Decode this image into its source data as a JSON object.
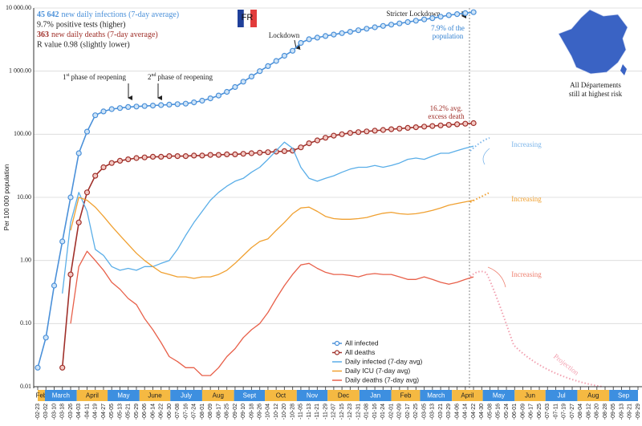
{
  "chart_data": {
    "type": "line",
    "flag": "FR",
    "y_label": "Per 100 000 population",
    "log_y": true,
    "ylim": [
      0.01,
      10000
    ],
    "yticks": [
      {
        "value": 0.01,
        "label": "0.01"
      },
      {
        "value": 0.1,
        "label": "0.10"
      },
      {
        "value": 1,
        "label": "1.00"
      },
      {
        "value": 10,
        "label": "10.00"
      },
      {
        "value": 100,
        "label": "100.00"
      },
      {
        "value": 1000,
        "label": "1 000.00"
      },
      {
        "value": 10000,
        "label": "10 000.00"
      }
    ],
    "xlim": [
      0,
      584
    ],
    "xticks": [
      {
        "value": 0,
        "label": "-02-23"
      },
      {
        "value": 8,
        "label": "-03-02"
      },
      {
        "value": 16,
        "label": "-03-10"
      },
      {
        "value": 24,
        "label": "-03-18"
      },
      {
        "value": 32,
        "label": "-03-26"
      },
      {
        "value": 40,
        "label": "-04-03"
      },
      {
        "value": 48,
        "label": "-04-11"
      },
      {
        "value": 56,
        "label": "-04-19"
      },
      {
        "value": 64,
        "label": "-04-27"
      },
      {
        "value": 72,
        "label": "-05-05"
      },
      {
        "value": 80,
        "label": "-05-13"
      },
      {
        "value": 88,
        "label": "-05-21"
      },
      {
        "value": 96,
        "label": "-05-29"
      },
      {
        "value": 104,
        "label": "-06-06"
      },
      {
        "value": 112,
        "label": "-06-14"
      },
      {
        "value": 120,
        "label": "-06-22"
      },
      {
        "value": 128,
        "label": "-06-30"
      },
      {
        "value": 136,
        "label": "-07-08"
      },
      {
        "value": 144,
        "label": "-07-16"
      },
      {
        "value": 152,
        "label": "-07-24"
      },
      {
        "value": 160,
        "label": "-08-01"
      },
      {
        "value": 168,
        "label": "-08-09"
      },
      {
        "value": 176,
        "label": "-08-17"
      },
      {
        "value": 184,
        "label": "-08-25"
      },
      {
        "value": 192,
        "label": "-09-02"
      },
      {
        "value": 200,
        "label": "-09-10"
      },
      {
        "value": 208,
        "label": "-09-18"
      },
      {
        "value": 216,
        "label": "-09-26"
      },
      {
        "value": 224,
        "label": "-10-04"
      },
      {
        "value": 232,
        "label": "-10-12"
      },
      {
        "value": 240,
        "label": "-10-20"
      },
      {
        "value": 248,
        "label": "-10-28"
      },
      {
        "value": 256,
        "label": "-11-05"
      },
      {
        "value": 264,
        "label": "-11-13"
      },
      {
        "value": 272,
        "label": "-11-21"
      },
      {
        "value": 280,
        "label": "-11-29"
      },
      {
        "value": 288,
        "label": "-12-07"
      },
      {
        "value": 296,
        "label": "-12-15"
      },
      {
        "value": 304,
        "label": "-12-23"
      },
      {
        "value": 312,
        "label": "-12-31"
      },
      {
        "value": 320,
        "label": "-01-08"
      },
      {
        "value": 328,
        "label": "-01-16"
      },
      {
        "value": 336,
        "label": "-01-24"
      },
      {
        "value": 344,
        "label": "-02-01"
      },
      {
        "value": 352,
        "label": "-02-09"
      },
      {
        "value": 360,
        "label": "-02-17"
      },
      {
        "value": 368,
        "label": "-02-25"
      },
      {
        "value": 376,
        "label": "-03-05"
      },
      {
        "value": 384,
        "label": "-03-13"
      },
      {
        "value": 392,
        "label": "-03-21"
      },
      {
        "value": 400,
        "label": "-03-29"
      },
      {
        "value": 408,
        "label": "-04-06"
      },
      {
        "value": 416,
        "label": "-04-14"
      },
      {
        "value": 424,
        "label": "-04-22"
      },
      {
        "value": 432,
        "label": "-04-30"
      },
      {
        "value": 440,
        "label": "-05-08"
      },
      {
        "value": 448,
        "label": "-05-16"
      },
      {
        "value": 456,
        "label": "-05-24"
      },
      {
        "value": 464,
        "label": "-06-01"
      },
      {
        "value": 472,
        "label": "-06-09"
      },
      {
        "value": 480,
        "label": "-06-17"
      },
      {
        "value": 488,
        "label": "-06-25"
      },
      {
        "value": 496,
        "label": "-07-03"
      },
      {
        "value": 504,
        "label": "-07-11"
      },
      {
        "value": 512,
        "label": "-07-19"
      },
      {
        "value": 520,
        "label": "-07-27"
      },
      {
        "value": 528,
        "label": "-08-04"
      },
      {
        "value": 536,
        "label": "-08-12"
      },
      {
        "value": 544,
        "label": "-08-20"
      },
      {
        "value": 552,
        "label": "-08-28"
      },
      {
        "value": 560,
        "label": "-09-05"
      },
      {
        "value": 568,
        "label": "-09-13"
      },
      {
        "value": 576,
        "label": "-09-21"
      },
      {
        "value": 584,
        "label": "-09-29"
      }
    ],
    "month_bands": [
      {
        "label": "Feb",
        "start": 0,
        "end": 7,
        "color": "#f5b942"
      },
      {
        "label": "March",
        "start": 7,
        "end": 38,
        "color": "#3d8fe0"
      },
      {
        "label": "April",
        "start": 38,
        "end": 68,
        "color": "#f5b942"
      },
      {
        "label": "May",
        "start": 68,
        "end": 99,
        "color": "#3d8fe0"
      },
      {
        "label": "June",
        "start": 99,
        "end": 129,
        "color": "#f5b942"
      },
      {
        "label": "July",
        "start": 129,
        "end": 160,
        "color": "#3d8fe0"
      },
      {
        "label": "Aug",
        "start": 160,
        "end": 191,
        "color": "#f5b942"
      },
      {
        "label": "Sept",
        "start": 191,
        "end": 221,
        "color": "#3d8fe0"
      },
      {
        "label": "Oct",
        "start": 221,
        "end": 252,
        "color": "#f5b942"
      },
      {
        "label": "Nov",
        "start": 252,
        "end": 282,
        "color": "#3d8fe0"
      },
      {
        "label": "Dec",
        "start": 282,
        "end": 313,
        "color": "#f5b942"
      },
      {
        "label": "Jan",
        "start": 313,
        "end": 344,
        "color": "#3d8fe0"
      },
      {
        "label": "Feb",
        "start": 344,
        "end": 372,
        "color": "#f5b942"
      },
      {
        "label": "March",
        "start": 372,
        "end": 403,
        "color": "#3d8fe0"
      },
      {
        "label": "April",
        "start": 403,
        "end": 433,
        "color": "#f5b942"
      },
      {
        "label": "May",
        "start": 433,
        "end": 464,
        "color": "#3d8fe0"
      },
      {
        "label": "Jun",
        "start": 464,
        "end": 494,
        "color": "#f5b942"
      },
      {
        "label": "Jul",
        "start": 494,
        "end": 525,
        "color": "#3d8fe0"
      },
      {
        "label": "Aug",
        "start": 525,
        "end": 556,
        "color": "#f5b942"
      },
      {
        "label": "Sep",
        "start": 556,
        "end": 584,
        "color": "#3d8fe0"
      }
    ],
    "x": [
      0,
      8,
      16,
      24,
      32,
      40,
      48,
      56,
      64,
      72,
      80,
      88,
      96,
      104,
      112,
      120,
      128,
      136,
      144,
      152,
      160,
      168,
      176,
      184,
      192,
      200,
      208,
      216,
      224,
      232,
      240,
      248,
      256,
      264,
      272,
      280,
      288,
      296,
      304,
      312,
      320,
      328,
      336,
      344,
      352,
      360,
      368,
      376,
      384,
      392,
      400,
      408,
      416,
      424
    ],
    "series": [
      {
        "name": "All infected",
        "color": "#4a90d9",
        "marker": true,
        "values": [
          0.02,
          0.06,
          0.4,
          2,
          10,
          50,
          110,
          200,
          230,
          250,
          260,
          270,
          275,
          280,
          285,
          290,
          295,
          300,
          305,
          320,
          340,
          370,
          410,
          470,
          560,
          680,
          820,
          1000,
          1200,
          1450,
          1750,
          2100,
          2800,
          3200,
          3400,
          3600,
          3800,
          4000,
          4200,
          4450,
          4700,
          4950,
          5200,
          5450,
          5700,
          6000,
          6300,
          6600,
          6900,
          7300,
          7700,
          8000,
          8300,
          8600
        ]
      },
      {
        "name": "All deaths",
        "color": "#a0302a",
        "marker": true,
        "values": [
          null,
          null,
          null,
          0.02,
          0.6,
          4,
          12,
          22,
          30,
          35,
          38,
          40,
          42,
          43,
          44,
          44,
          45,
          45,
          45,
          46,
          46,
          47,
          47,
          48,
          48,
          49,
          50,
          51,
          52,
          53,
          54,
          55,
          62,
          72,
          80,
          88,
          95,
          100,
          105,
          108,
          111,
          114,
          117,
          120,
          123,
          126,
          129,
          132,
          135,
          138,
          141,
          144,
          147,
          150
        ]
      },
      {
        "name": "Daily infected (7-day avg)",
        "color": "#5aaee8",
        "marker": false,
        "values": [
          null,
          null,
          null,
          0.3,
          4,
          12,
          6,
          1.5,
          1.2,
          0.8,
          0.7,
          0.75,
          0.7,
          0.8,
          0.8,
          0.9,
          1.0,
          1.5,
          2.5,
          4,
          6,
          9,
          12,
          15,
          18,
          20,
          25,
          30,
          40,
          55,
          75,
          60,
          30,
          20,
          18,
          20,
          22,
          25,
          28,
          30,
          30,
          32,
          30,
          32,
          35,
          40,
          42,
          40,
          45,
          50,
          50,
          55,
          60,
          65
        ]
      },
      {
        "name": "Daily ICU (7-day avg)",
        "color": "#f0a030",
        "marker": false,
        "values": [
          null,
          null,
          null,
          null,
          3,
          10,
          9,
          7,
          5,
          3.5,
          2.5,
          1.8,
          1.3,
          1.0,
          0.8,
          0.65,
          0.6,
          0.55,
          0.55,
          0.52,
          0.55,
          0.55,
          0.6,
          0.7,
          0.9,
          1.2,
          1.6,
          2.0,
          2.2,
          3,
          4,
          5.5,
          6.8,
          7,
          6,
          5,
          4.6,
          4.5,
          4.5,
          4.6,
          4.8,
          5.2,
          5.6,
          5.8,
          5.5,
          5.4,
          5.5,
          5.8,
          6.2,
          6.8,
          7.5,
          8,
          8.5,
          9
        ]
      },
      {
        "name": "Daily deaths (7-day avg)",
        "color": "#e8604a",
        "marker": false,
        "values": [
          null,
          null,
          null,
          null,
          0.1,
          0.8,
          1.4,
          1.0,
          0.7,
          0.45,
          0.35,
          0.25,
          0.2,
          0.12,
          0.08,
          0.05,
          0.03,
          0.025,
          0.02,
          0.02,
          0.015,
          0.015,
          0.02,
          0.03,
          0.04,
          0.06,
          0.08,
          0.1,
          0.15,
          0.25,
          0.4,
          0.6,
          0.85,
          0.9,
          0.75,
          0.65,
          0.6,
          0.6,
          0.58,
          0.55,
          0.6,
          0.62,
          0.6,
          0.6,
          0.55,
          0.5,
          0.5,
          0.55,
          0.5,
          0.45,
          0.42,
          0.45,
          0.5,
          0.55
        ]
      }
    ],
    "stats": [
      {
        "value": "45 642",
        "text": "new daily infections (7-day average)",
        "color": "#4a90d9"
      },
      {
        "value": "9.7%",
        "text": "positive tests (higher)",
        "color": "#222"
      },
      {
        "value": "363",
        "text": "new daily deaths (7-day average)",
        "color": "#a0302a"
      },
      {
        "value": "R value 0.98",
        "text": "(slightly lower)",
        "color": "#222"
      }
    ],
    "annotations": {
      "stricter_lockdown": "Stricter Lockdown",
      "lockdown": "Lockdown",
      "reopening_1": {
        "number": "1",
        "suffix": "st",
        "text": "phase of reopening"
      },
      "reopening_2": {
        "number": "2",
        "suffix": "nd",
        "text": "phase of reopening"
      },
      "infected_share": [
        "7.9% of the",
        "population"
      ],
      "excess_death": [
        "16.2% avg.",
        "excess death"
      ],
      "increasing": [
        "Increasing",
        "Increasing",
        "Increasing"
      ],
      "projection": "Projection",
      "map_caption": [
        "All Départements",
        "still at highest risk"
      ]
    }
  }
}
